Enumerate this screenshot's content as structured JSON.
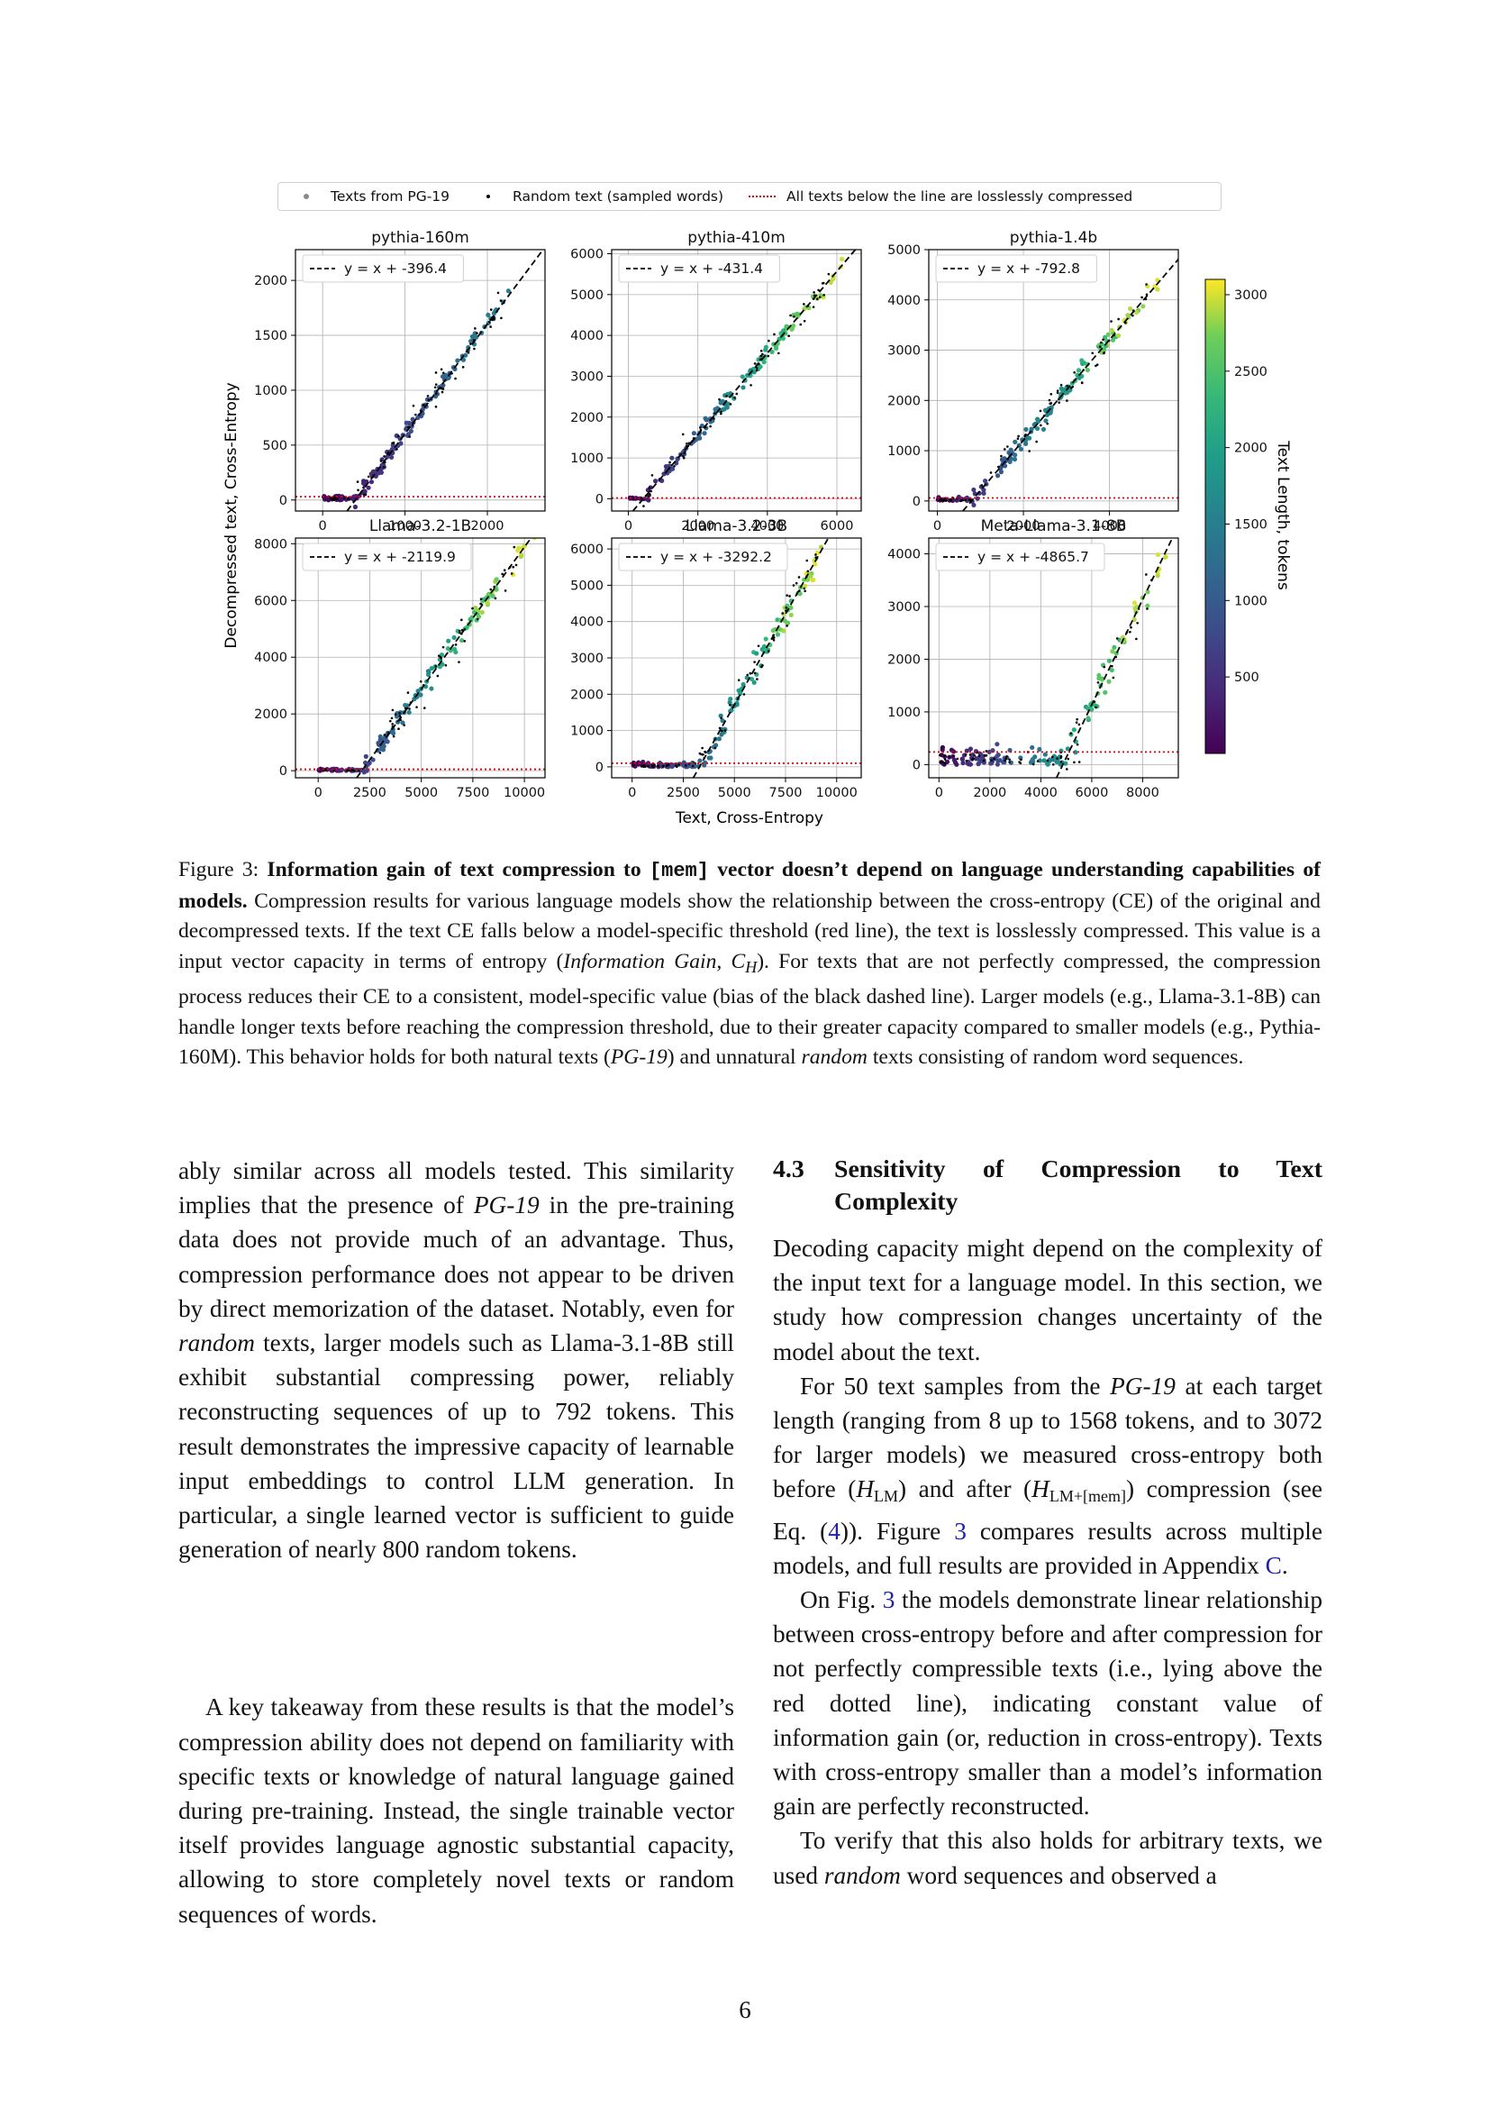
{
  "figure": {
    "legend": {
      "pg19": "Texts from PG-19",
      "random": "Random text (sampled words)",
      "line": "All texts below the line are losslessly compressed"
    },
    "x_label": "Text, Cross-Entropy",
    "y_label": "Decompressed text, Cross-Entropy",
    "colorbar": {
      "label": "Text Length, tokens",
      "ticks": [
        "3000",
        "2500",
        "2000",
        "1500",
        "1000",
        "500"
      ],
      "range": [
        0,
        3100
      ]
    },
    "colors": {
      "threshold_line": "#e0000f",
      "fit_line": "#000000",
      "random_points": "#000000"
    }
  },
  "chart_data": [
    {
      "type": "scatter",
      "title": "pythia-160m",
      "fit_label": "y = x + -396.4",
      "bias": -396.4,
      "threshold": 30,
      "xlim": [
        -330,
        2700
      ],
      "ylim": [
        -100,
        2280
      ],
      "xticks": [
        "0",
        "1000",
        "2000"
      ],
      "yticks": [
        "0",
        "500",
        "1000",
        "1500",
        "2000"
      ],
      "xtick_values": [
        0,
        1000,
        2000
      ],
      "ytick_values": [
        0,
        500,
        1000,
        1500,
        2000
      ],
      "max_len": 1568,
      "xmax": 2200
    },
    {
      "type": "scatter",
      "title": "pythia-410m",
      "fit_label": "y = x + -431.4",
      "bias": -431.4,
      "threshold": 20,
      "xlim": [
        -480,
        6700
      ],
      "ylim": [
        -300,
        6100
      ],
      "xticks": [
        "0",
        "2000",
        "4000",
        "6000"
      ],
      "yticks": [
        "0",
        "1000",
        "2000",
        "3000",
        "4000",
        "5000",
        "6000"
      ],
      "xtick_values": [
        0,
        2000,
        4000,
        6000
      ],
      "ytick_values": [
        0,
        1000,
        2000,
        3000,
        4000,
        5000,
        6000
      ],
      "max_len": 3072,
      "xmax": 5800
    },
    {
      "type": "scatter",
      "title": "pythia-1.4b",
      "fit_label": "y = x + -792.8",
      "bias": -792.8,
      "threshold": 60,
      "xlim": [
        -200,
        5600
      ],
      "ylim": [
        -200,
        5000
      ],
      "xticks": [
        "0",
        "2000",
        "4000"
      ],
      "yticks": [
        "0",
        "1000",
        "2000",
        "3000",
        "4000",
        "5000"
      ],
      "xtick_values": [
        0,
        2000,
        4000
      ],
      "ytick_values": [
        0,
        1000,
        2000,
        3000,
        4000,
        5000
      ],
      "max_len": 3072,
      "xmax": 4900
    },
    {
      "type": "scatter",
      "title": "Llama-3.2-1B",
      "fit_label": "y = x + -2119.9",
      "bias": -2119.9,
      "threshold": 50,
      "xlim": [
        -1100,
        11000
      ],
      "ylim": [
        -250,
        8200
      ],
      "xticks": [
        "0",
        "2500",
        "5000",
        "7500",
        "10000"
      ],
      "yticks": [
        "0",
        "2000",
        "4000",
        "6000",
        "8000"
      ],
      "xtick_values": [
        0,
        2500,
        5000,
        7500,
        10000
      ],
      "ytick_values": [
        0,
        2000,
        4000,
        6000,
        8000
      ],
      "max_len": 3072,
      "xmax": 9700
    },
    {
      "type": "scatter",
      "title": "Llama-3.2-3B",
      "fit_label": "y = x + -3292.2",
      "bias": -3292.2,
      "threshold": 100,
      "xlim": [
        -1000,
        11200
      ],
      "ylim": [
        -300,
        6300
      ],
      "xticks": [
        "0",
        "2500",
        "5000",
        "7500",
        "10000"
      ],
      "yticks": [
        "0",
        "1000",
        "2000",
        "3000",
        "4000",
        "5000",
        "6000"
      ],
      "xtick_values": [
        0,
        2500,
        5000,
        7500,
        10000
      ],
      "ytick_values": [
        0,
        1000,
        2000,
        3000,
        4000,
        5000,
        6000
      ],
      "max_len": 3072,
      "xmax": 9200
    },
    {
      "type": "scatter",
      "title": "Meta-Llama-3.1-8B",
      "fit_label": "y = x + -4865.7",
      "bias": -4865.7,
      "threshold": 240,
      "xlim": [
        -400,
        9400
      ],
      "ylim": [
        -250,
        4300
      ],
      "xticks": [
        "0",
        "2000",
        "4000",
        "6000",
        "8000"
      ],
      "yticks": [
        "0",
        "1000",
        "2000",
        "3000",
        "4000"
      ],
      "xtick_values": [
        0,
        2000,
        4000,
        6000,
        8000
      ],
      "ytick_values": [
        0,
        1000,
        2000,
        3000,
        4000
      ],
      "max_len": 3072,
      "xmax": 8600
    }
  ],
  "caption": {
    "label": "Figure 3:",
    "bold_1": "Information gain of text compression to",
    "mem": "[mem]",
    "bold_2": "vector doesn’t depend on language understanding capabilities of models.",
    "text_1": "Compression results for various language models show the relationship between the cross-entropy (CE) of the original and decompressed texts. If the text CE falls below a model-specific threshold (red line), the text is losslessly compressed. This value is a input vector capacity in terms of entropy (",
    "ig": "Information Gain",
    "ch_var": "C",
    "ch_sub": "H",
    "text_2": "). For texts that are not perfectly compressed, the compression process reduces their CE to a consistent, model-specific value (bias of the black dashed line). Larger models (e.g., Llama-3.1-8B) can handle longer texts before reaching the compression threshold, due to their greater capacity compared to smaller models (e.g., Pythia-160M). This behavior holds for both natural texts (",
    "pg19": "PG-19",
    "text_3": ") and unnatural",
    "random": "random",
    "text_4": "texts consisting of random word sequences."
  },
  "left_column": {
    "p1_a": "ably similar across all models tested. This similarity implies that the presence of",
    "p1_pg19": "PG-19",
    "p1_b": "in the pre-training data does not provide much of an advantage. Thus, compression performance does not appear to be driven by direct memorization of the dataset. Notably, even for",
    "p1_random": "random",
    "p1_c": "texts, larger models such as Llama-3.1-8B still exhibit substantial compressing power, reliably reconstructing sequences of up to 792 tokens. This result demonstrates the impressive capacity of learnable input embeddings to control LLM generation. In particular, a single learned vector is sufficient to guide generation of nearly 800 random tokens.",
    "p2": "A key takeaway from these results is that the model’s compression ability does not depend on familiarity with specific texts or knowledge of natural language gained during pre-training. Instead, the single trainable vector itself provides language agnostic substantial capacity, allowing to store completely novel texts or random sequences of words."
  },
  "right_column": {
    "section_number": "4.3",
    "section_title": "Sensitivity of Compression to Text Complexity",
    "p1": "Decoding capacity might depend on the complexity of the input text for a language model. In this section, we study how compression changes uncertainty of the model about the text.",
    "p2_a": "For 50 text samples from the",
    "p2_pg19": "PG-19",
    "p2_b": "at each target length (ranging from 8 up to 1568 tokens, and to 3072 for larger models) we measured cross-entropy both before (",
    "h_var": "H",
    "h_lm": "LM",
    "p2_c": ") and after (",
    "h_lm_mem": "LM+[mem]",
    "p2_d": ") compression (see Eq. (",
    "eq_ref": "4",
    "p2_e": ")). Figure",
    "fig_ref": "3",
    "p2_f": "compares results across multiple models, and full results are provided in Appendix",
    "app_ref": "C",
    "p2_g": ".",
    "p3_a": "On Fig.",
    "p3_fig_ref": "3",
    "p3_b": "the models demonstrate linear relationship between cross-entropy before and after compression for not perfectly compressible texts (i.e., lying above the red dotted line), indicating constant value of information gain (or, reduction in cross-entropy). Texts with cross-entropy smaller than a model’s information gain are perfectly reconstructed.",
    "p4_a": "To verify that this also holds for arbitrary texts, we used",
    "p4_random": "random",
    "p4_b": "word sequences and observed a"
  },
  "page_number": "6"
}
